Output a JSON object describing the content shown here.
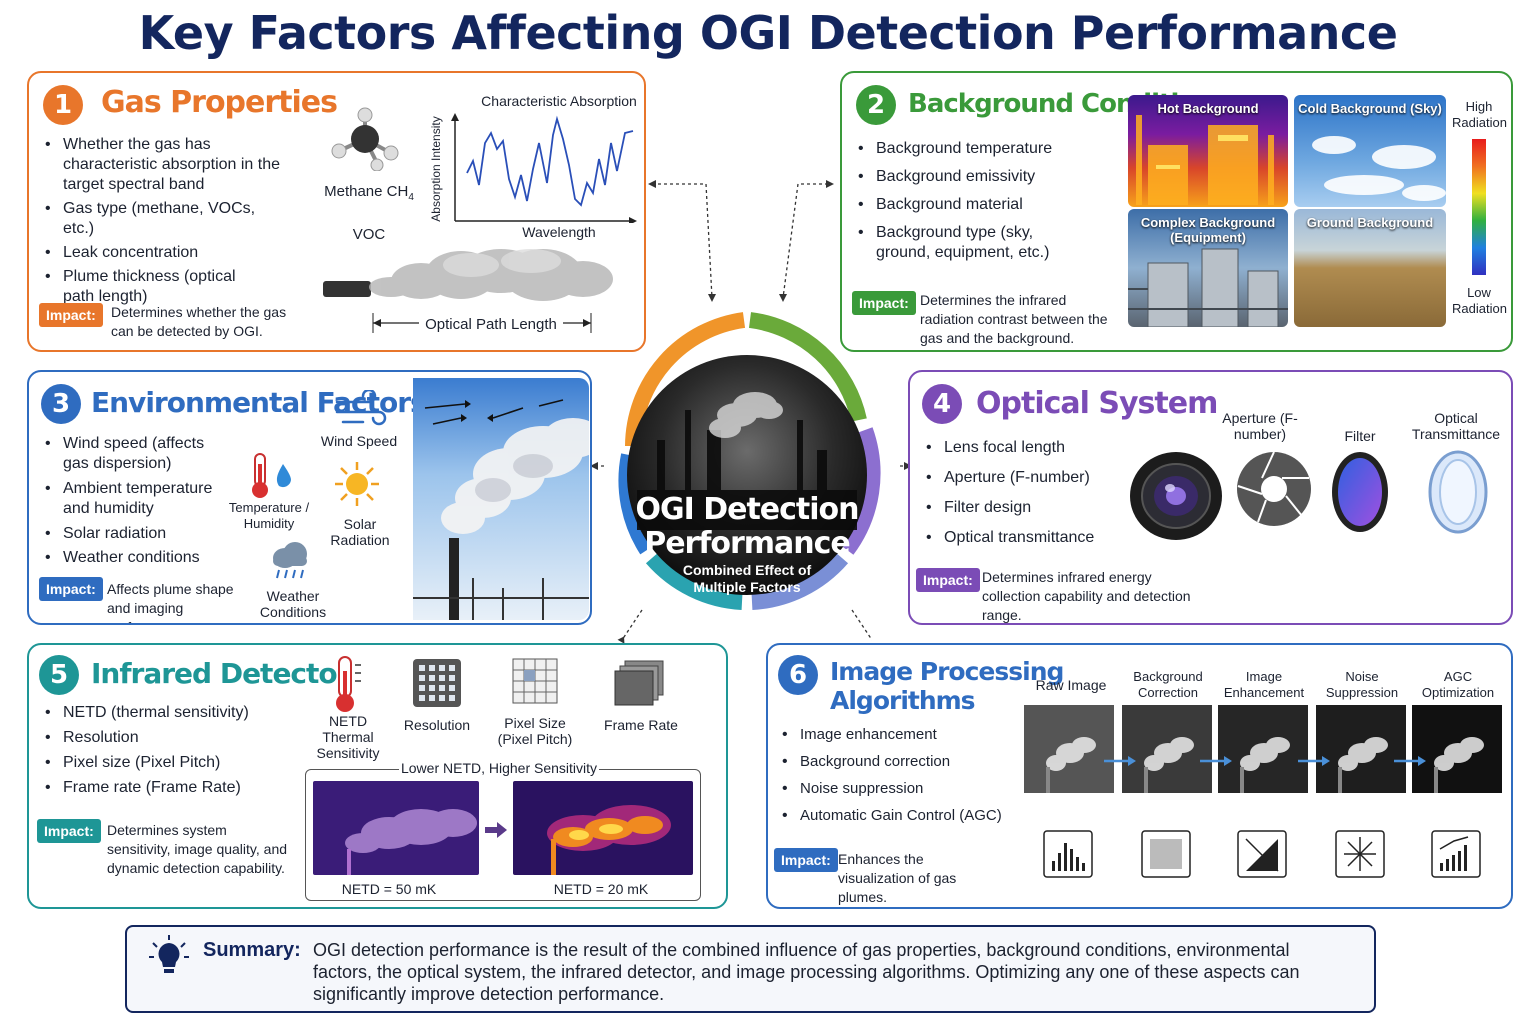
{
  "title": "Key Factors Affecting OGI Detection Performance",
  "center": {
    "title_line1": "OGI Detection",
    "title_line2": "Performance",
    "sub_line1": "Combined Effect of",
    "sub_line2": "Multiple Factors"
  },
  "panel1": {
    "num": "1",
    "heading": "Gas Properties",
    "color": "#e8762b",
    "bullets": [
      "Whether the gas has characteristic absorption in the target spectral band",
      "Gas type (methane, VOCs, etc.)",
      "Leak concentration",
      "Plume thickness (optical path length)"
    ],
    "impact_label": "Impact:",
    "impact_text": "Determines whether the gas can be detected by OGI.",
    "methane_label": "Methane CH",
    "methane_sub": "4",
    "voc_label": "VOC",
    "chart_title": "Characteristic Absorption",
    "chart_ylabel": "Absorption Intensity",
    "chart_xlabel": "Wavelength",
    "path_label": "Optical Path Length"
  },
  "panel2": {
    "num": "2",
    "heading": "Background Conditions",
    "color": "#3a9a3a",
    "bullets": [
      "Background temperature",
      "Background emissivity",
      "Background material",
      "Background type (sky, ground, equipment, etc.)"
    ],
    "impact_label": "Impact:",
    "impact_text": "Determines the infrared radiation contrast between the gas and the background.",
    "images": [
      "Hot Background",
      "Cold Background (Sky)",
      "Complex Background (Equipment)",
      "Ground Background"
    ],
    "scale_high": "High Radiation",
    "scale_low": "Low Radiation"
  },
  "panel3": {
    "num": "3",
    "heading": "Environmental Factors",
    "color": "#2f6cc0",
    "bullets": [
      "Wind speed (affects gas dispersion)",
      "Ambient temperature and humidity",
      "Solar radiation",
      "Weather conditions"
    ],
    "impact_label": "Impact:",
    "impact_text": "Affects plume shape and imaging performance.",
    "icons": {
      "wind": "Wind Speed",
      "temp": "Temperature / Humidity",
      "solar": "Solar Radiation",
      "weather": "Weather Conditions"
    }
  },
  "panel4": {
    "num": "4",
    "heading": "Optical System",
    "color": "#7b4cb6",
    "bullets": [
      "Lens focal length",
      "Aperture (F-number)",
      "Filter design",
      "Optical transmittance"
    ],
    "impact_label": "Impact:",
    "impact_text": "Determines infrared energy collection capability and detection range.",
    "icons": {
      "aperture": "Aperture (F-number)",
      "filter": "Filter",
      "trans": "Optical Transmittance"
    }
  },
  "panel5": {
    "num": "5",
    "heading": "Infrared Detector",
    "color": "#1e9696",
    "bullets": [
      "NETD (thermal sensitivity)",
      "Resolution",
      "Pixel size (Pixel Pitch)",
      "Frame rate (Frame Rate)"
    ],
    "impact_label": "Impact:",
    "impact_text": "Determines system sensitivity, image quality, and dynamic detection capability.",
    "icons": {
      "netd": "NETD Thermal Sensitivity",
      "res": "Resolution",
      "pixel": "Pixel Size (Pixel Pitch)",
      "frame": "Frame Rate"
    },
    "compare_title": "Lower NETD, Higher Sensitivity",
    "netd_a": "NETD = 50 mK",
    "netd_b": "NETD = 20 mK"
  },
  "panel6": {
    "num": "6",
    "heading_line1": "Image Processing",
    "heading_line2": "Algorithms",
    "color": "#2f6cc0",
    "bullets": [
      "Image enhancement",
      "Background correction",
      "Noise suppression",
      "Automatic Gain Control (AGC)"
    ],
    "impact_label": "Impact:",
    "impact_text": "Enhances the visualization of gas plumes.",
    "steps": [
      "Raw Image",
      "Background Correction",
      "Image Enhancement",
      "Noise Suppression",
      "AGC Optimization"
    ]
  },
  "summary": {
    "label": "Summary:",
    "text": "OGI detection performance is the result of the combined influence of gas properties, background conditions, environmental factors, the optical system, the infrared detector, and image processing algorithms. Optimizing any one of these aspects can significantly improve detection performance."
  },
  "icons": [
    "lightbulb-icon",
    "molecule-icon",
    "pipe-icon",
    "wind-icon",
    "thermometer-icon",
    "sun-icon",
    "cloud-rain-icon",
    "lens-icon",
    "aperture-icon",
    "filter-icon",
    "window-icon",
    "detector-grid-icon",
    "histogram-icon"
  ]
}
